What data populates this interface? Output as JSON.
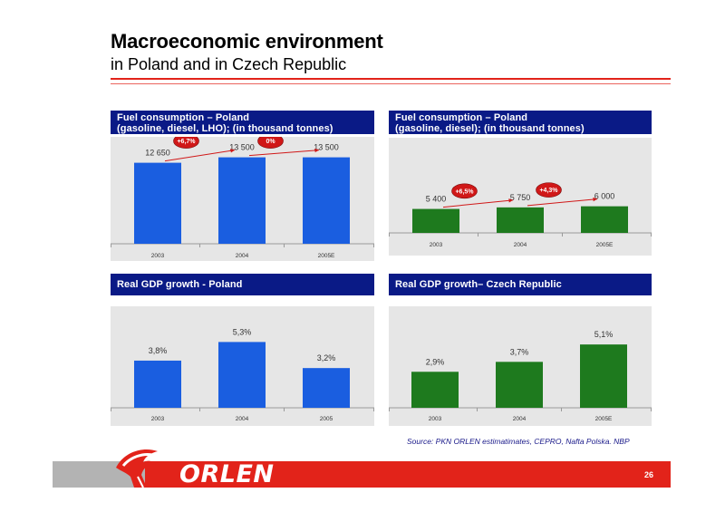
{
  "page": {
    "title": "Macroeconomic environment",
    "subtitle": "in Poland and in Czech Republic",
    "source": "Source: PKN ORLEN estimatimates, CEPRO, Nafta Polska. NBP",
    "page_number": "26",
    "logo_text": "ORLEN"
  },
  "colors": {
    "blue_bar": "#1a5ee0",
    "green_bar": "#1e7a1e",
    "header": "#0a1a86",
    "accent_red": "#e2231a"
  },
  "chart_data": [
    {
      "type": "bar",
      "title_line1": "Fuel consumption – Poland",
      "title_line2": "(gasoline, diesel, LHO); (in thousand tonnes)",
      "categories": [
        "2003",
        "2004",
        "2005E"
      ],
      "values": [
        12650,
        13500,
        13500
      ],
      "value_labels": [
        "12 650",
        "13 500",
        "13 500"
      ],
      "ylim": [
        0,
        15000
      ],
      "color": "blue",
      "growth_labels": [
        "+6,7%",
        "0%"
      ]
    },
    {
      "type": "bar",
      "title_line1": "Fuel consumption – Poland",
      "title_line2": "(gasoline, diesel); (in thousand tonnes)",
      "categories": [
        "2003",
        "2004",
        "2005E"
      ],
      "values": [
        5400,
        5750,
        6000
      ],
      "value_labels": [
        "5 400",
        "5 750",
        "6 000"
      ],
      "ylim": [
        0,
        19000
      ],
      "color": "green",
      "growth_labels": [
        "+6,5%",
        "+4,3%"
      ]
    },
    {
      "type": "bar",
      "title_line1": "Real GDP growth - Poland",
      "title_line2": "",
      "categories": [
        "2003",
        "2004",
        "2005"
      ],
      "values": [
        3.8,
        5.3,
        3.2
      ],
      "value_labels": [
        "3,8%",
        "5,3%",
        "3,2%"
      ],
      "ylim": [
        0,
        7.3
      ],
      "color": "blue",
      "growth_labels": []
    },
    {
      "type": "bar",
      "title_line1": "Real GDP growth– Czech Republic",
      "title_line2": "",
      "categories": [
        "2003",
        "2004",
        "2005E"
      ],
      "values": [
        2.9,
        3.7,
        5.1
      ],
      "value_labels": [
        "2,9%",
        "3,7%",
        "5,1%"
      ],
      "ylim": [
        0,
        7.3
      ],
      "color": "green",
      "growth_labels": []
    }
  ]
}
